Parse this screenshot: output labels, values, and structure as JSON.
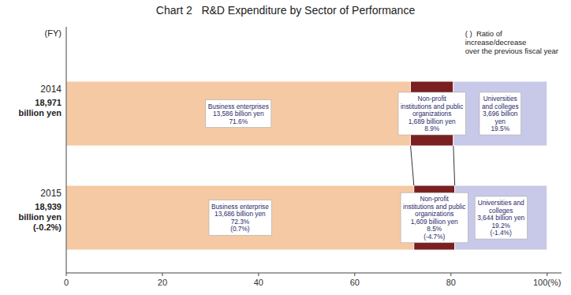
{
  "chart_data": {
    "type": "bar",
    "orientation": "horizontal",
    "stacked": true,
    "data_labels": true,
    "title": "Chart 2   R&D Expenditure by Sector of Performance",
    "y_label": "(FY)",
    "categories": [
      "2014",
      "2015"
    ],
    "series": [
      {
        "color": "#f5c9a3",
        "values": [
          71.6,
          72.3
        ],
        "value_labels": [
          "Business enterprises\n13,586 billion yen\n71.6%",
          "Business enterprise\n13,686 billion yen\n72.3%\n(0.7%)"
        ]
      },
      {
        "color": "#7a2020",
        "values": [
          8.9,
          8.5
        ],
        "value_labels": [
          "Non-profit\ninstitutions and public\norganizations\n1,689 billion yen\n8.9%",
          "Non-profit\ninstitutions and public\norganizations\n1,609 billion yen\n8.5%\n(-4.7%)"
        ]
      },
      {
        "color": "#c8c8e8",
        "values": [
          19.5,
          19.2
        ],
        "value_labels": [
          "Universities\nand colleges\n3,696 billion\nyen\n19.5%",
          "Universities and\ncolleges\n3,644 billion yen\n19.2%\n(-1.4%)"
        ]
      }
    ],
    "xlim": [
      0,
      103
    ],
    "xticks": [
      0,
      20,
      40,
      60,
      80,
      {
        "value": 100,
        "label": "100(%)"
      }
    ],
    "annotations": [
      {
        "text": "18,971\nbillion yen",
        "at": "2014"
      },
      {
        "text": "18,939\nbillion yen\n(-0.2%)",
        "at": "2015"
      },
      {
        "text": "( )  Ratio of\nincrease/decrease\nover the previous fiscal year"
      }
    ]
  }
}
